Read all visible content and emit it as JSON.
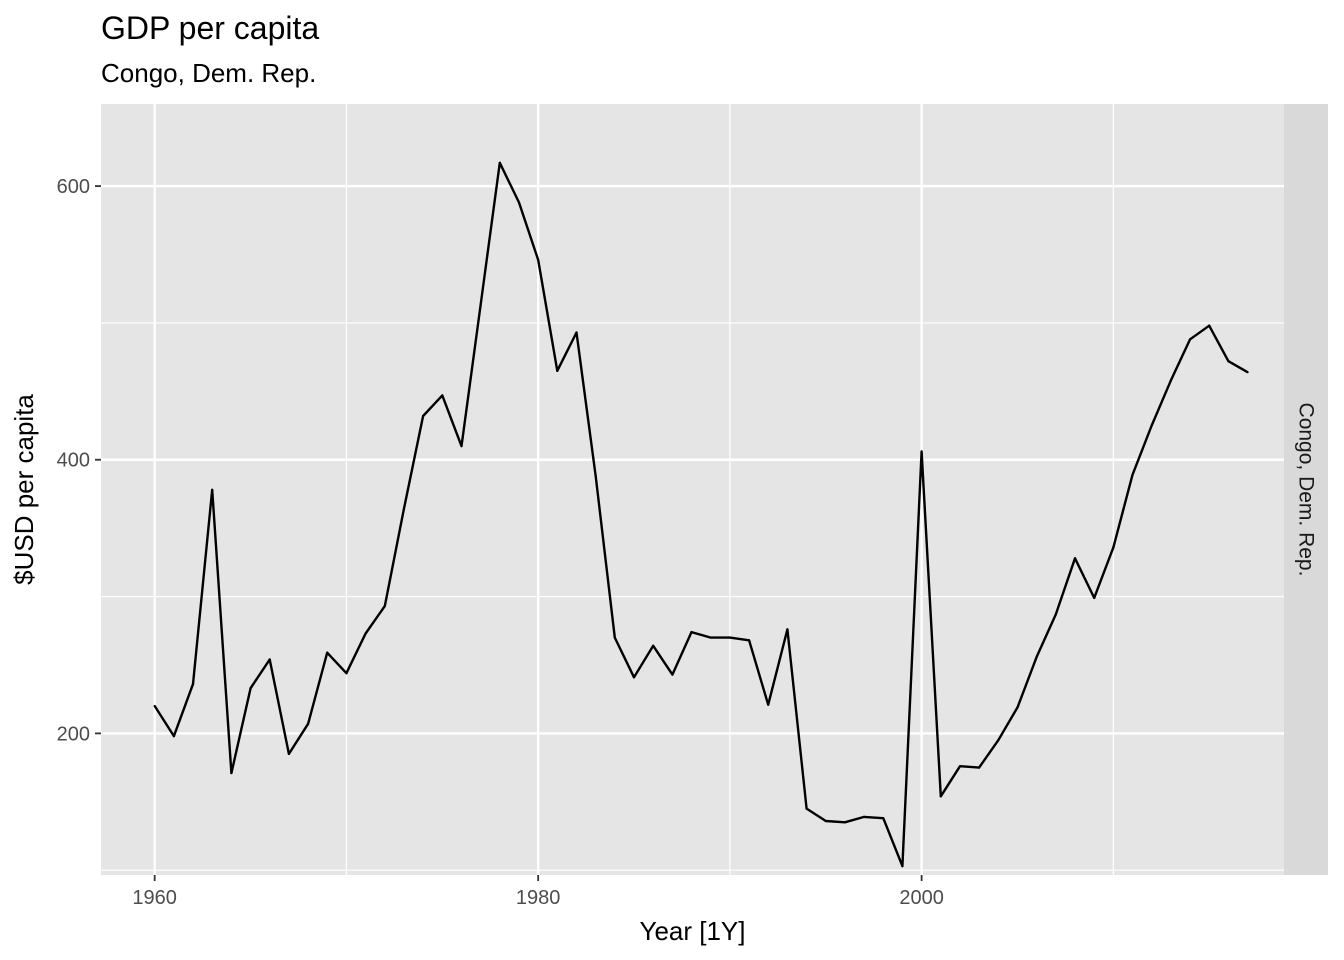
{
  "chart_data": {
    "type": "line",
    "title": "GDP per capita",
    "subtitle": "Congo, Dem. Rep.",
    "xlabel": "Year [1Y]",
    "ylabel": "$USD per capita",
    "facet_label": "Congo, Dem. Rep.",
    "xlim": [
      1957.2,
      2018.9
    ],
    "ylim": [
      96.5,
      660
    ],
    "x_ticks": [
      1960,
      1980,
      2000
    ],
    "y_ticks": [
      200,
      400,
      600
    ],
    "x_minor": [
      1970,
      1990,
      2010
    ],
    "y_minor": [
      100,
      300,
      500
    ],
    "grid": true,
    "legend": "none",
    "colors": {
      "panel": "#e5e5e5",
      "grid": "#ffffff",
      "line": "#000000",
      "strip": "#d9d9d9",
      "tick": "#4d4d4d"
    },
    "series": [
      {
        "x": [
          1960,
          1961,
          1962,
          1963,
          1964,
          1965,
          1966,
          1967,
          1968,
          1969,
          1970,
          1971,
          1972,
          1973,
          1974,
          1975,
          1976,
          1977,
          1978,
          1979,
          1980,
          1981,
          1982,
          1983,
          1984,
          1985,
          1986,
          1987,
          1988,
          1989,
          1990,
          1991,
          1992,
          1993,
          1994,
          1995,
          1996,
          1997,
          1998,
          1999,
          2000,
          2001,
          2002,
          2003,
          2004,
          2005,
          2006,
          2007,
          2008,
          2009,
          2010,
          2011,
          2012,
          2013,
          2014,
          2015,
          2016,
          2017
        ],
        "values": [
          220,
          198,
          236,
          378,
          171,
          233,
          254,
          185,
          207,
          259,
          244,
          273,
          293,
          364,
          432,
          447,
          410,
          513,
          617,
          588,
          546,
          465,
          493,
          388,
          270,
          241,
          264,
          243,
          274,
          270,
          270,
          268,
          221,
          276,
          145,
          136,
          135,
          139,
          138,
          103,
          406,
          154,
          176,
          175,
          195,
          219,
          256,
          287,
          328,
          299,
          336,
          389,
          425,
          458,
          488,
          498,
          472,
          464
        ]
      }
    ]
  }
}
